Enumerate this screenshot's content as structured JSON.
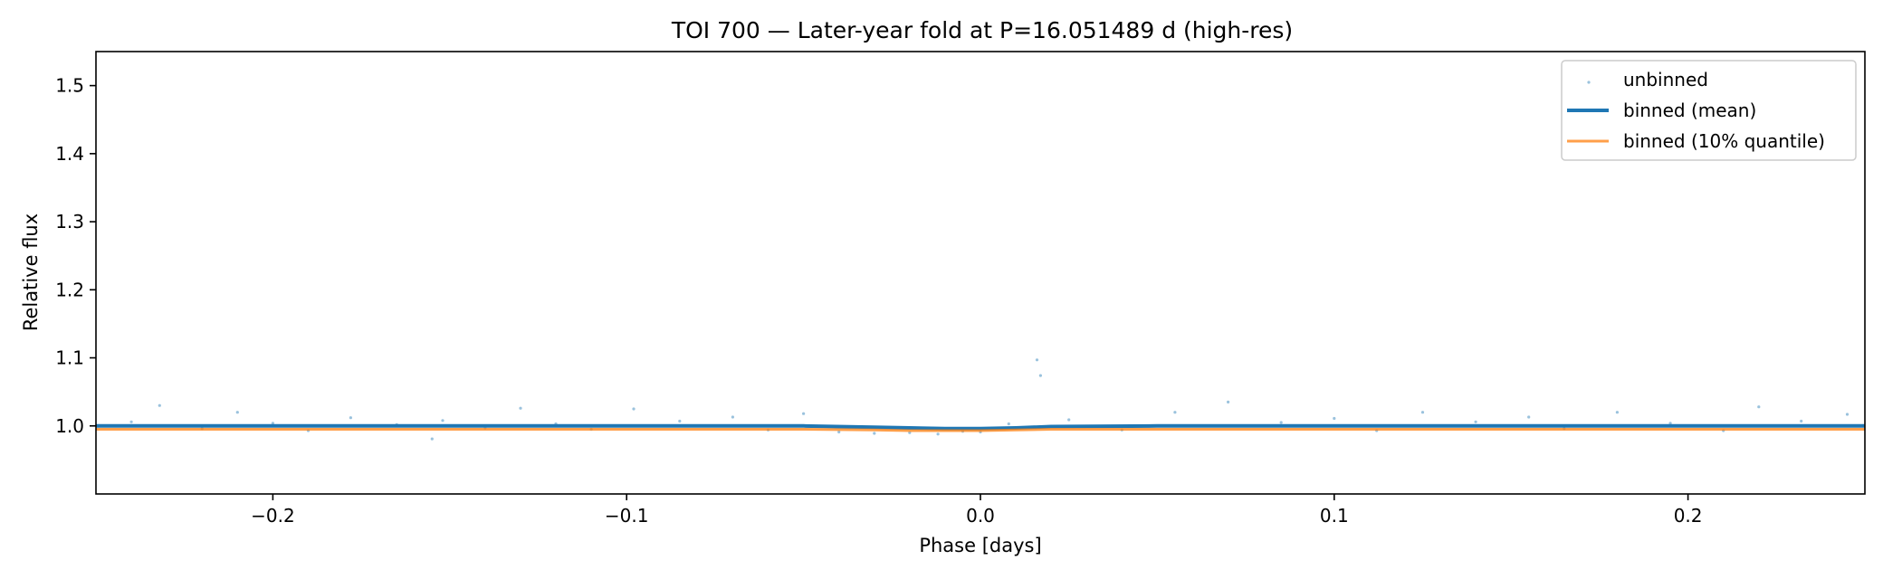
{
  "chart_data": {
    "type": "scatter",
    "title": "TOI 700 — Later-year fold at P=16.051489 d (high-res)",
    "xlabel": "Phase [days]",
    "ylabel": "Relative flux",
    "xlim": [
      -0.25,
      0.25
    ],
    "ylim": [
      0.9,
      1.55
    ],
    "x_ticks": [
      -0.2,
      -0.1,
      0.0,
      0.1,
      0.2
    ],
    "x_tick_labels": [
      "−0.2",
      "−0.1",
      "0.0",
      "0.1",
      "0.2"
    ],
    "y_ticks": [
      1.0,
      1.1,
      1.2,
      1.3,
      1.4,
      1.5
    ],
    "y_tick_labels": [
      "1.0",
      "1.1",
      "1.2",
      "1.3",
      "1.4",
      "1.5"
    ],
    "grid": false,
    "legend_position": "top-right",
    "series": [
      {
        "name": "unbinned",
        "kind": "scatter",
        "color": "#1f77b4",
        "x": [
          -0.24,
          -0.232,
          -0.22,
          -0.21,
          -0.2,
          -0.19,
          -0.178,
          -0.165,
          -0.155,
          -0.152,
          -0.14,
          -0.13,
          -0.12,
          -0.11,
          -0.098,
          -0.085,
          -0.07,
          -0.06,
          -0.05,
          -0.04,
          -0.03,
          -0.02,
          -0.012,
          -0.005,
          0.0,
          0.008,
          0.016,
          0.017,
          0.025,
          0.04,
          0.055,
          0.07,
          0.085,
          0.1,
          0.112,
          0.125,
          0.14,
          0.155,
          0.165,
          0.18,
          0.195,
          0.21,
          0.22,
          0.232,
          0.245
        ],
        "y": [
          1.006,
          1.03,
          0.996,
          1.02,
          1.004,
          0.993,
          1.012,
          1.002,
          0.981,
          1.008,
          0.997,
          1.026,
          1.003,
          0.995,
          1.025,
          1.007,
          1.013,
          0.994,
          1.018,
          0.991,
          0.989,
          0.99,
          0.988,
          0.992,
          0.991,
          1.003,
          1.097,
          1.074,
          1.009,
          0.994,
          1.02,
          1.035,
          1.005,
          1.011,
          0.993,
          1.02,
          1.006,
          1.013,
          0.996,
          1.02,
          1.004,
          0.993,
          1.028,
          1.007,
          1.017
        ]
      },
      {
        "name": "binned (mean)",
        "kind": "line",
        "color": "#1f77b4",
        "x": [
          -0.25,
          -0.2,
          -0.15,
          -0.1,
          -0.05,
          -0.03,
          -0.02,
          -0.01,
          0.0,
          0.01,
          0.02,
          0.05,
          0.1,
          0.15,
          0.2,
          0.25
        ],
        "y": [
          1.0,
          1.0,
          1.0,
          1.0,
          1.0,
          0.998,
          0.997,
          0.996,
          0.996,
          0.997,
          0.999,
          1.0,
          1.0,
          1.0,
          1.0,
          1.0
        ]
      },
      {
        "name": "binned (10% quantile)",
        "kind": "line",
        "color": "#ff7f0e",
        "x": [
          -0.25,
          -0.2,
          -0.15,
          -0.1,
          -0.05,
          -0.03,
          -0.02,
          -0.01,
          0.0,
          0.01,
          0.02,
          0.05,
          0.1,
          0.15,
          0.2,
          0.25
        ],
        "y": [
          0.995,
          0.995,
          0.995,
          0.995,
          0.995,
          0.994,
          0.993,
          0.993,
          0.993,
          0.994,
          0.995,
          0.995,
          0.995,
          0.995,
          0.995,
          0.995
        ]
      }
    ]
  }
}
